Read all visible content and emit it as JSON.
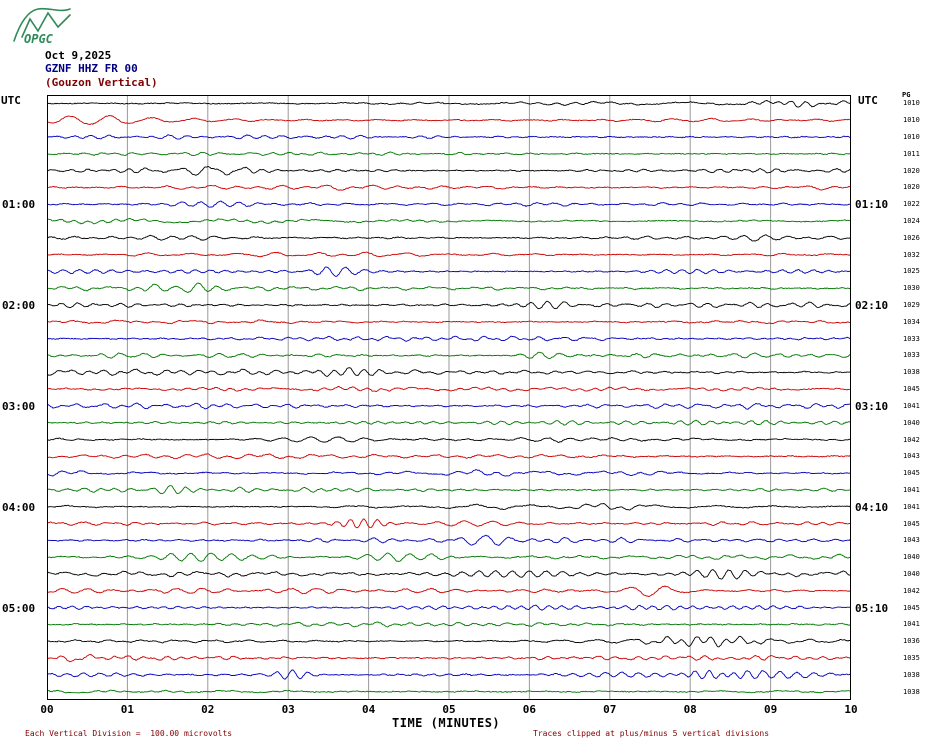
{
  "logo": {
    "text": "OPGC"
  },
  "header": {
    "date": "Oct 9,2025",
    "station": "GZNF HHZ FR 00",
    "description": "(Gouzon Vertical)"
  },
  "axis": {
    "utc_left": "UTC",
    "utc_right": "UTC",
    "right_col_header": "PG"
  },
  "footer": {
    "left": "Each Vertical Division =  100.00 microvolts",
    "right": "Traces clipped at plus/minus 5 vertical divisions"
  },
  "colors": {
    "trace": {
      "black": "#000000",
      "red": "#cc0000",
      "blue": "#0000bb",
      "green": "#007700"
    },
    "grid": "#9a9a9a",
    "border": "#000000",
    "labels": "#000000",
    "right_values": "#000000",
    "station": "#000080",
    "description": "#800000",
    "date": "#000000",
    "footnote": "#800000",
    "logo": "#2e8b57"
  },
  "chart_data": {
    "type": "line",
    "title": "GZNF HHZ FR 00 (Gouzon Vertical) helicorder, Oct 9,2025",
    "xlabel": "TIME (MINUTES)",
    "x_ticks": [
      "00",
      "01",
      "02",
      "03",
      "04",
      "05",
      "06",
      "07",
      "08",
      "09",
      "10"
    ],
    "x_range_minutes": [
      0,
      10
    ],
    "minutes_per_row": 10,
    "row_count": 36,
    "trace_color_cycle": [
      "black",
      "red",
      "blue",
      "green"
    ],
    "vertical_division": "100.00 microvolts",
    "clip_divisions": 5,
    "waveforms": "ambient seismic noise (not resolvable at screenshot scale; regenerated procedurally)",
    "rows": [
      {
        "t": "00:00",
        "color": "black",
        "value": "1010"
      },
      {
        "t": "00:10",
        "color": "red",
        "value": "1010"
      },
      {
        "t": "00:20",
        "color": "blue",
        "value": "1010"
      },
      {
        "t": "00:30",
        "color": "green",
        "value": "1011"
      },
      {
        "t": "00:40",
        "color": "black",
        "value": "1020"
      },
      {
        "t": "00:50",
        "color": "red",
        "value": "1020"
      },
      {
        "t": "01:00",
        "color": "blue",
        "value": "1022",
        "left": "01:00",
        "right": "01:10"
      },
      {
        "t": "01:10",
        "color": "green",
        "value": "1024"
      },
      {
        "t": "01:20",
        "color": "black",
        "value": "1026"
      },
      {
        "t": "01:30",
        "color": "red",
        "value": "1032"
      },
      {
        "t": "01:40",
        "color": "blue",
        "value": "1025"
      },
      {
        "t": "01:50",
        "color": "green",
        "value": "1030"
      },
      {
        "t": "02:00",
        "color": "black",
        "value": "1029",
        "left": "02:00",
        "right": "02:10"
      },
      {
        "t": "02:10",
        "color": "red",
        "value": "1034"
      },
      {
        "t": "02:20",
        "color": "blue",
        "value": "1033"
      },
      {
        "t": "02:30",
        "color": "green",
        "value": "1033"
      },
      {
        "t": "02:40",
        "color": "black",
        "value": "1038"
      },
      {
        "t": "02:50",
        "color": "red",
        "value": "1045"
      },
      {
        "t": "03:00",
        "color": "blue",
        "value": "1041",
        "left": "03:00",
        "right": "03:10"
      },
      {
        "t": "03:10",
        "color": "green",
        "value": "1040"
      },
      {
        "t": "03:20",
        "color": "black",
        "value": "1042"
      },
      {
        "t": "03:30",
        "color": "red",
        "value": "1043"
      },
      {
        "t": "03:40",
        "color": "blue",
        "value": "1045"
      },
      {
        "t": "03:50",
        "color": "green",
        "value": "1041"
      },
      {
        "t": "04:00",
        "color": "black",
        "value": "1041",
        "left": "04:00",
        "right": "04:10"
      },
      {
        "t": "04:10",
        "color": "red",
        "value": "1045"
      },
      {
        "t": "04:20",
        "color": "blue",
        "value": "1043"
      },
      {
        "t": "04:30",
        "color": "green",
        "value": "1040"
      },
      {
        "t": "04:40",
        "color": "black",
        "value": "1040"
      },
      {
        "t": "04:50",
        "color": "red",
        "value": "1042"
      },
      {
        "t": "05:00",
        "color": "blue",
        "value": "1045",
        "left": "05:00",
        "right": "05:10"
      },
      {
        "t": "05:10",
        "color": "green",
        "value": "1041"
      },
      {
        "t": "05:20",
        "color": "black",
        "value": "1036"
      },
      {
        "t": "05:30",
        "color": "red",
        "value": "1035"
      },
      {
        "t": "05:40",
        "color": "blue",
        "value": "1038"
      },
      {
        "t": "05:50",
        "color": "green",
        "value": "1038"
      }
    ]
  }
}
